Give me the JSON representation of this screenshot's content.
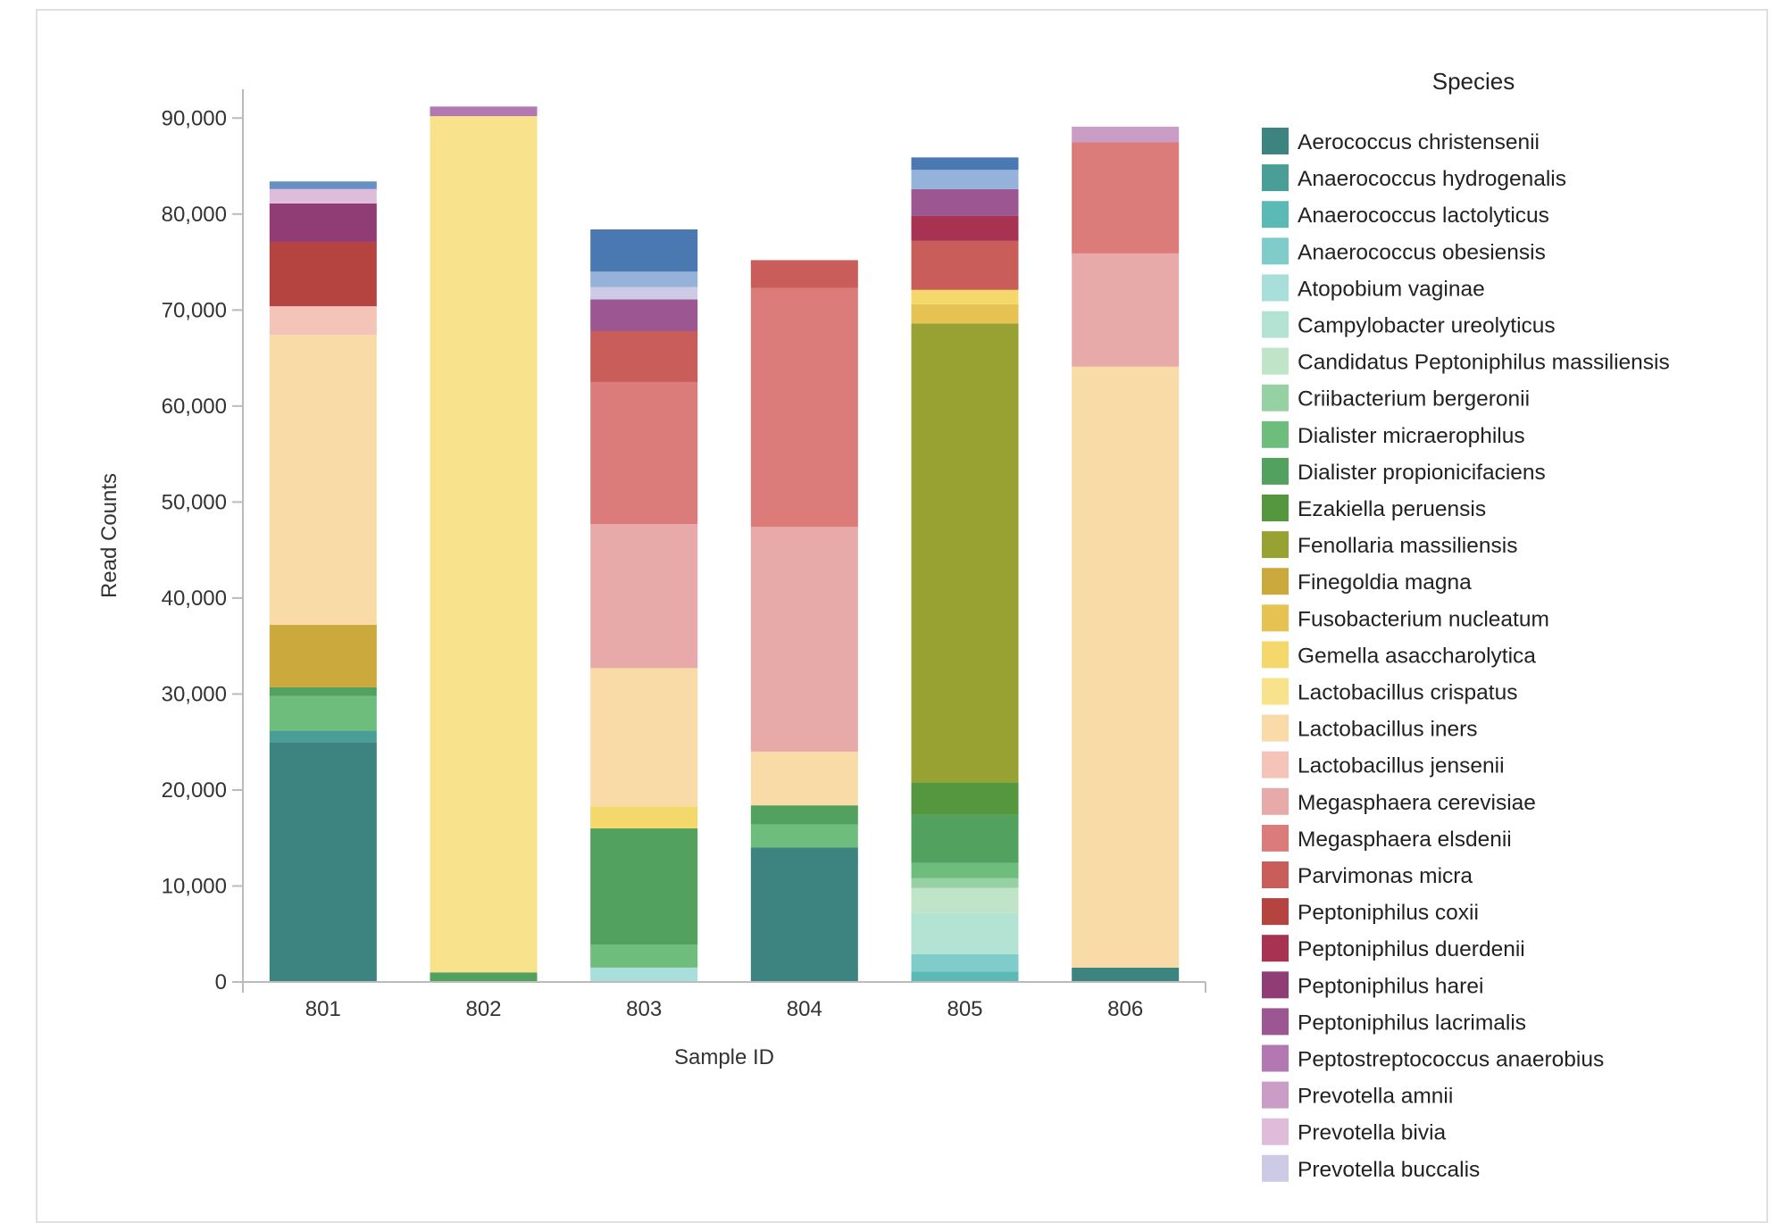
{
  "chart_data": {
    "type": "bar",
    "stacked": true,
    "xlabel": "Sample ID",
    "ylabel": "Read Counts",
    "ylim": [
      0,
      93000
    ],
    "yticks": [
      0,
      10000,
      20000,
      30000,
      40000,
      50000,
      60000,
      70000,
      80000,
      90000
    ],
    "ytick_labels": [
      "0",
      "10,000",
      "20,000",
      "30,000",
      "40,000",
      "50,000",
      "60,000",
      "70,000",
      "80,000",
      "90,000"
    ],
    "categories": [
      "801",
      "802",
      "803",
      "804",
      "805",
      "806"
    ],
    "legend_title": "Species",
    "legend_position": "right",
    "series": [
      {
        "name": "Aerococcus christensenii",
        "color": "#3d8480",
        "values": [
          25000,
          0,
          0,
          14000,
          0,
          1500
        ]
      },
      {
        "name": "Anaerococcus hydrogenalis",
        "color": "#4a9e98",
        "values": [
          1200,
          0,
          0,
          0,
          0,
          0
        ]
      },
      {
        "name": "Anaerococcus lactolyticus",
        "color": "#5cbab6",
        "values": [
          0,
          0,
          0,
          0,
          1100,
          0
        ]
      },
      {
        "name": "Anaerococcus obesiensis",
        "color": "#7fcccb",
        "values": [
          0,
          0,
          0,
          0,
          1800,
          0
        ]
      },
      {
        "name": "Atopobium vaginae",
        "color": "#a8dfda",
        "values": [
          0,
          0,
          1500,
          0,
          0,
          0
        ]
      },
      {
        "name": "Campylobacter ureolyticus",
        "color": "#b3e3d3",
        "values": [
          0,
          0,
          0,
          0,
          4300,
          0
        ]
      },
      {
        "name": "Candidatus Peptoniphilus massiliensis",
        "color": "#bfe4c8",
        "values": [
          0,
          0,
          0,
          0,
          2600,
          0
        ]
      },
      {
        "name": "Criibacterium bergeronii",
        "color": "#96d1a3",
        "values": [
          0,
          0,
          0,
          0,
          1000,
          0
        ]
      },
      {
        "name": "Dialister micraerophilus",
        "color": "#6fbd7c",
        "values": [
          3600,
          0,
          2400,
          2400,
          1600,
          0
        ]
      },
      {
        "name": "Dialister propionicifaciens",
        "color": "#53a15e",
        "values": [
          900,
          1000,
          12100,
          2000,
          5000,
          0
        ]
      },
      {
        "name": "Ezakiella peruensis",
        "color": "#55973f",
        "values": [
          0,
          0,
          0,
          0,
          3400,
          0
        ]
      },
      {
        "name": "Fenollaria massiliensis",
        "color": "#97a233",
        "values": [
          0,
          0,
          0,
          0,
          47800,
          0
        ]
      },
      {
        "name": "Finegoldia magna",
        "color": "#cca93c",
        "values": [
          6500,
          0,
          0,
          0,
          0,
          0
        ]
      },
      {
        "name": "Fusobacterium nucleatum",
        "color": "#e5c251",
        "values": [
          0,
          0,
          0,
          0,
          2000,
          0
        ]
      },
      {
        "name": "Gemella asaccharolytica",
        "color": "#f5d86c",
        "values": [
          0,
          0,
          2300,
          0,
          1500,
          0
        ]
      },
      {
        "name": "Lactobacillus crispatus",
        "color": "#f8e38c",
        "values": [
          0,
          89200,
          0,
          0,
          0,
          0
        ]
      },
      {
        "name": "Lactobacillus iners",
        "color": "#f8dba7",
        "values": [
          30200,
          0,
          14400,
          5600,
          0,
          62600
        ]
      },
      {
        "name": "Lactobacillus jensenii",
        "color": "#f5c4b9",
        "values": [
          3000,
          0,
          0,
          0,
          0,
          0
        ]
      },
      {
        "name": "Megasphaera cerevisiae",
        "color": "#e8a9a9",
        "values": [
          0,
          0,
          15000,
          23400,
          0,
          11800
        ]
      },
      {
        "name": "Megasphaera elsdenii",
        "color": "#db7b7a",
        "values": [
          0,
          0,
          14800,
          24900,
          0,
          11600
        ]
      },
      {
        "name": "Parvimonas micra",
        "color": "#c95d59",
        "values": [
          0,
          0,
          5300,
          2900,
          5100,
          0
        ]
      },
      {
        "name": "Peptoniphilus coxii",
        "color": "#b54441",
        "values": [
          6700,
          0,
          0,
          0,
          0,
          0
        ]
      },
      {
        "name": "Peptoniphilus duerdenii",
        "color": "#a83251",
        "values": [
          0,
          0,
          0,
          0,
          2600,
          0
        ]
      },
      {
        "name": "Peptoniphilus harei",
        "color": "#903c75",
        "values": [
          4000,
          0,
          0,
          0,
          0,
          0
        ]
      },
      {
        "name": "Peptoniphilus lacrimalis",
        "color": "#9c5692",
        "values": [
          0,
          0,
          3300,
          0,
          2800,
          0
        ]
      },
      {
        "name": "Peptostreptococcus anaerobius",
        "color": "#b377b1",
        "values": [
          0,
          1000,
          0,
          0,
          0,
          0
        ]
      },
      {
        "name": "Prevotella amnii",
        "color": "#c99dc6",
        "values": [
          0,
          0,
          0,
          0,
          0,
          1600
        ]
      },
      {
        "name": "Prevotella bivia",
        "color": "#dfbdda",
        "values": [
          1500,
          0,
          0,
          0,
          0,
          0
        ]
      },
      {
        "name": "Prevotella buccalis",
        "color": "#cdcae6",
        "values": [
          0,
          0,
          1300,
          0,
          0,
          0
        ]
      },
      {
        "name": "",
        "color": "#94b2da",
        "values": [
          0,
          0,
          1600,
          0,
          2000,
          0
        ]
      },
      {
        "name": "",
        "color": "#6891c3",
        "values": [
          800,
          0,
          0,
          0,
          0,
          0
        ]
      },
      {
        "name": "",
        "color": "#4a78b0",
        "values": [
          0,
          0,
          4400,
          0,
          1300,
          0
        ]
      }
    ]
  }
}
